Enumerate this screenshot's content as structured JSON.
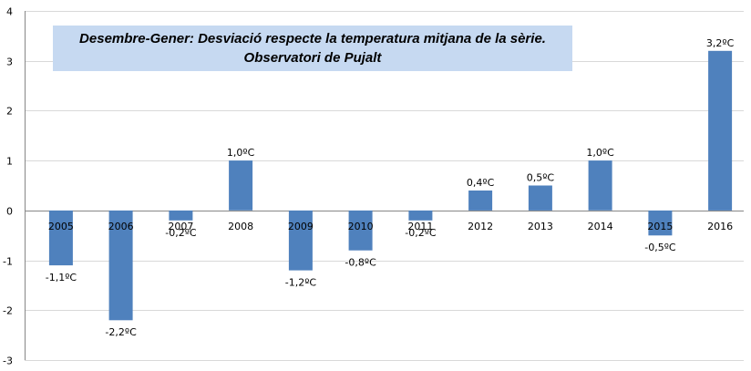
{
  "chart_data": {
    "type": "bar",
    "title": "Desembre-Gener: Desviació respecte la temperatura mitjana de la sèrie.",
    "subtitle": "Observatori de Pujalt",
    "xlabel": "",
    "ylabel": "",
    "categories": [
      "2005",
      "2006",
      "2007",
      "2008",
      "2009",
      "2010",
      "2011",
      "2012",
      "2013",
      "2014",
      "2015",
      "2016"
    ],
    "series": [
      {
        "values": [
          -1.1,
          -2.2,
          -0.2,
          1.0,
          -1.2,
          -0.8,
          -0.2,
          0.4,
          0.5,
          1.0,
          -0.5,
          3.2
        ],
        "labels": [
          "-1,1ºC",
          "-2,2ºC",
          "-0,2ºC",
          "1,0ºC",
          "-1,2ºC",
          "-0,8ºC",
          "-0,2ºC",
          "0,4ºC",
          "0,5ºC",
          "1,0ºC",
          "-0,5ºC",
          "3,2ºC"
        ],
        "color": "#4f81bd"
      }
    ],
    "yticks": [
      "-3",
      "-2",
      "-1",
      "0",
      "1",
      "2",
      "3",
      "4"
    ],
    "ylim": [
      -3,
      4
    ],
    "grid": true,
    "legend": "none"
  }
}
